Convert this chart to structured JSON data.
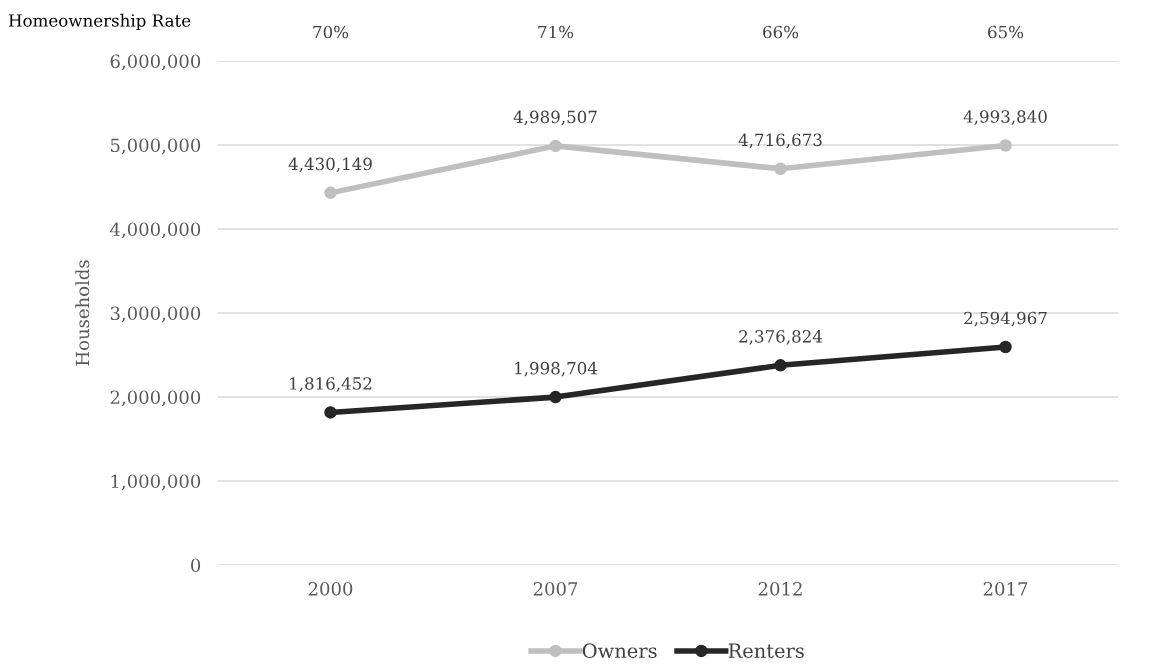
{
  "chart_data": {
    "type": "line",
    "ylabel": "Households",
    "categories": [
      "2000",
      "2007",
      "2012",
      "2017"
    ],
    "series": [
      {
        "name": "Owners",
        "color": "#bfbfbf",
        "values": [
          4430149,
          4989507,
          4716673,
          4993840
        ],
        "value_labels": [
          "4,430,149",
          "4,989,507",
          "4,716,673",
          "4,993,840"
        ]
      },
      {
        "name": "Renters",
        "color": "#262626",
        "values": [
          1816452,
          1998704,
          2376824,
          2594967
        ],
        "value_labels": [
          "1,816,452",
          "1,998,704",
          "2,376,824",
          "2,594,967"
        ]
      }
    ],
    "ylim": [
      0,
      6000000
    ],
    "yticks": [
      {
        "value": 0,
        "label": "0"
      },
      {
        "value": 1000000,
        "label": "1,000,000"
      },
      {
        "value": 2000000,
        "label": "2,000,000"
      },
      {
        "value": 3000000,
        "label": "3,000,000"
      },
      {
        "value": 4000000,
        "label": "4,000,000"
      },
      {
        "value": 5000000,
        "label": "5,000,000"
      },
      {
        "value": 6000000,
        "label": "6,000,000"
      }
    ],
    "grid": "y",
    "legend": "bottom",
    "marker": "circle",
    "line_style": "solid",
    "annotations": [
      "Homeownership Rate",
      "70%",
      "71%",
      "66%",
      "65%"
    ]
  }
}
